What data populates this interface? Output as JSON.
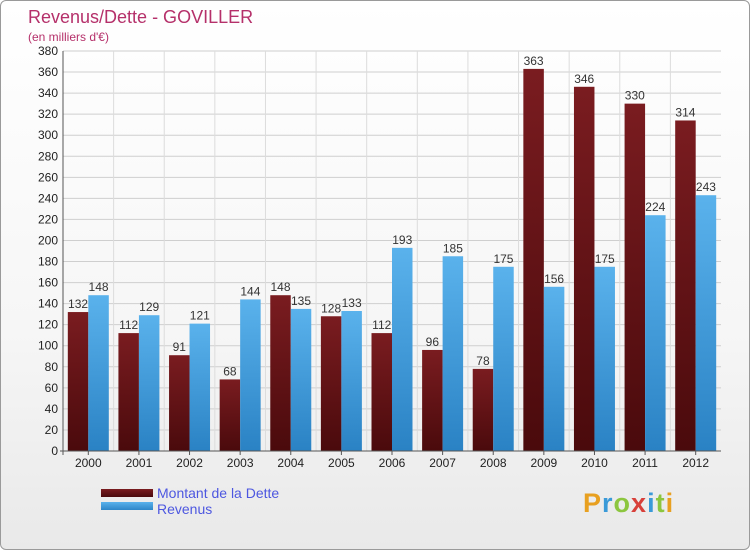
{
  "title": "Revenus/Dette - GOVILLER",
  "subtitle": "(en milliers d'€)",
  "colors": {
    "title": "#b5306a",
    "legend_text": "#4d57e0",
    "dette": "#7a1c20",
    "revenus": "#3f9fe0"
  },
  "chart_data": {
    "type": "bar",
    "title": "Revenus/Dette - GOVILLER",
    "ylabel": "(en milliers d'€)",
    "categories": [
      "2000",
      "2001",
      "2002",
      "2003",
      "2004",
      "2005",
      "2006",
      "2007",
      "2008",
      "2009",
      "2010",
      "2011",
      "2012"
    ],
    "series": [
      {
        "name": "Montant de la Dette",
        "values": [
          132,
          112,
          91,
          68,
          148,
          128,
          112,
          96,
          78,
          363,
          346,
          330,
          314
        ]
      },
      {
        "name": "Revenus",
        "values": [
          148,
          129,
          121,
          144,
          135,
          133,
          193,
          185,
          175,
          156,
          175,
          224,
          243
        ]
      }
    ],
    "ylim": [
      0,
      380
    ],
    "yticks": [
      0,
      20,
      40,
      60,
      80,
      100,
      120,
      140,
      160,
      180,
      200,
      220,
      240,
      260,
      280,
      300,
      320,
      340,
      360,
      380
    ],
    "grid": true,
    "legend": "bottom-left"
  },
  "legend": [
    {
      "label": "Montant de la Dette"
    },
    {
      "label": "Revenus"
    }
  ],
  "logo": {
    "letters": [
      "P",
      "r",
      "o",
      "x",
      "i",
      "t",
      "i"
    ]
  }
}
